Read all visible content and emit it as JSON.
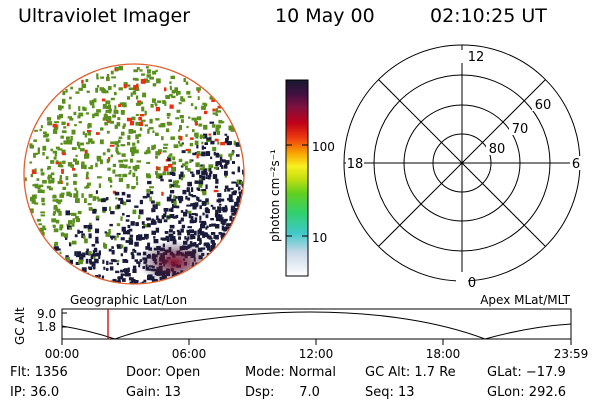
{
  "header": {
    "title": "Ultraviolet Imager",
    "date": "10 May 00",
    "time": "02:10:25 UT"
  },
  "colorbar": {
    "label": "photon cm⁻²s⁻¹",
    "ticks": [
      "100",
      "10"
    ]
  },
  "polar": {
    "mlt_labels": [
      "12",
      "18",
      "6",
      "0"
    ],
    "lat_labels": [
      "60",
      "70",
      "80"
    ]
  },
  "timeline": {
    "left_label": "Geographic Lat/Lon",
    "right_label": "Apex MLat/MLT",
    "y_axis_label": "GC Alt",
    "y_ticks": [
      "9.0",
      "1.8"
    ],
    "x_ticks": [
      "00:00",
      "06:00",
      "12:00",
      "18:00",
      "23:59"
    ],
    "marker_time": "02:10:25"
  },
  "info": {
    "flt": "Flt: 1356",
    "ip": "IP: 36.0",
    "door": "Door: Open",
    "gain": "Gain: 13",
    "mode": "Mode: Normal",
    "dsp": "Dsp:      7.0",
    "gc_alt": "GC Alt: 1.7 Re",
    "seq": "Seq: 13",
    "glat": "GLat: −17.9",
    "glon": "GLon: 292.6"
  },
  "colors": {
    "green": "#5a8f1e",
    "red": "#e83010",
    "navy": "#1a1a3a",
    "marker": "#cc0000"
  }
}
